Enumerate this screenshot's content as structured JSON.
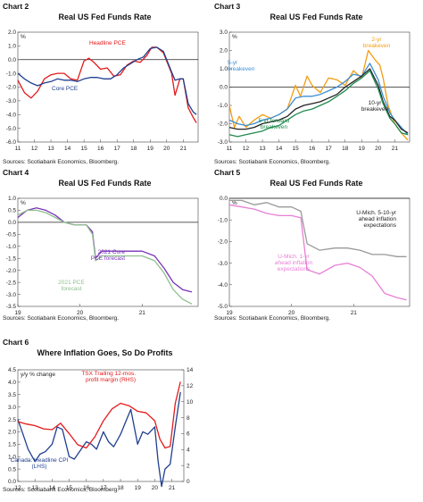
{
  "colors": {
    "red": "#e41a1c",
    "navy": "#1f3f8f",
    "orange": "#f39c12",
    "blue": "#3c8fd4",
    "black": "#222222",
    "green": "#1f8a4c",
    "purple": "#7a33b8",
    "lightgreen": "#8fbf8f",
    "gray": "#9a9a9a",
    "pink": "#e87fd6"
  },
  "charts": [
    {
      "id": "chart2",
      "chart_label": "Chart 2",
      "title": "Real US Fed Funds Rate",
      "unit": "%",
      "source": "Sources: Scotiabank Economics, Bloomberg.",
      "annotations": [
        "Headline PCE",
        "Core PCE"
      ]
    },
    {
      "id": "chart3",
      "chart_label": "Chart 3",
      "title": "Real US Fed Funds Rate",
      "unit": "%",
      "source": "Sources: Scotiabank Economics, Bloomberg.",
      "annotations": [
        "5-yr",
        "breakeven",
        "2-yr",
        "breakeven",
        "10-yr",
        "breakeven",
        "5-yr forward",
        "breakeven"
      ]
    },
    {
      "id": "chart4",
      "chart_label": "Chart 4",
      "title": "Real US Fed Funds Rate",
      "unit": "%",
      "source": "Sources: Scotiabank Economics, Bloomberg.",
      "annotations": [
        "2021 Core",
        "PCE forecast",
        "2021 PCE",
        "forecast"
      ]
    },
    {
      "id": "chart5",
      "chart_label": "Chart 5",
      "title": "Real US Fed Funds Rate",
      "unit": "%",
      "source": "Sources: Scotiabank Economics, Bloomberg.",
      "annotations": [
        "U-Mich. 5-10-yr",
        "ahead inflation",
        "expectations",
        "U-Mich. 1-yr",
        "ahead inflation",
        "expectations"
      ]
    },
    {
      "id": "chart6",
      "chart_label": "Chart 6",
      "title": "Where Inflation Goes, So Do Profits",
      "unit": "y/y % change",
      "source": "Sources: Scotiabank Economics, Bloomberg.",
      "annotations": [
        "TSX Trailing 12-mos.",
        "profit margin (RHS)",
        "Canada: Headline CPI",
        "(LHS)"
      ]
    }
  ],
  "chart_data": [
    {
      "type": "line",
      "title": "Real US Fed Funds Rate",
      "xlabel": "",
      "ylabel": "%",
      "xlim": [
        2011,
        2021.9
      ],
      "ylim": [
        -6.0,
        2.0
      ],
      "yticks": [
        2.0,
        1.0,
        0.0,
        -1.0,
        -2.0,
        -3.0,
        -4.0,
        -5.0,
        -6.0
      ],
      "ytick_labels": [
        "2.0",
        "1.0",
        "0.0",
        "-1.0",
        "-2.0",
        "-3.0",
        "-4.0",
        "-5.0",
        "-6.0"
      ],
      "xticks": [
        2011,
        2012,
        2013,
        2014,
        2015,
        2016,
        2017,
        2018,
        2019,
        2020,
        2021
      ],
      "xtick_labels": [
        "11",
        "12",
        "13",
        "14",
        "15",
        "16",
        "17",
        "18",
        "19",
        "20",
        "21"
      ],
      "zero_line": true,
      "series": [
        {
          "name": "Headline PCE",
          "color_key": "red",
          "x": [
            2011.0,
            2011.4,
            2011.8,
            2012.2,
            2012.6,
            2013.0,
            2013.4,
            2013.8,
            2014.2,
            2014.6,
            2015.0,
            2015.3,
            2015.6,
            2016.0,
            2016.4,
            2016.8,
            2017.2,
            2017.6,
            2018.0,
            2018.4,
            2018.8,
            2019.1,
            2019.4,
            2019.8,
            2020.1,
            2020.3,
            2020.5,
            2020.8,
            2021.0,
            2021.3,
            2021.6,
            2021.8
          ],
          "y": [
            -1.5,
            -2.4,
            -2.8,
            -2.3,
            -1.4,
            -1.1,
            -1.0,
            -1.0,
            -1.4,
            -1.5,
            -0.1,
            0.1,
            -0.2,
            -0.7,
            -0.6,
            -1.2,
            -1.1,
            -0.4,
            -0.1,
            -0.2,
            0.3,
            0.9,
            0.9,
            0.5,
            -0.4,
            -1.0,
            -2.6,
            -1.4,
            -1.4,
            -3.5,
            -4.2,
            -4.6
          ]
        },
        {
          "name": "Core PCE",
          "color_key": "navy",
          "x": [
            2011.0,
            2011.4,
            2011.8,
            2012.2,
            2012.6,
            2013.0,
            2013.4,
            2013.8,
            2014.2,
            2014.6,
            2015.0,
            2015.4,
            2015.8,
            2016.2,
            2016.6,
            2017.0,
            2017.4,
            2017.8,
            2018.2,
            2018.6,
            2019.0,
            2019.4,
            2019.8,
            2020.1,
            2020.3,
            2020.5,
            2020.8,
            2021.0,
            2021.3,
            2021.6,
            2021.8
          ],
          "y": [
            -1.0,
            -1.4,
            -1.7,
            -1.9,
            -1.7,
            -1.6,
            -1.4,
            -1.5,
            -1.5,
            -1.6,
            -1.4,
            -1.3,
            -1.3,
            -1.4,
            -1.4,
            -1.1,
            -0.6,
            -0.3,
            0.0,
            0.2,
            0.8,
            0.9,
            0.6,
            -0.3,
            -0.9,
            -1.5,
            -1.4,
            -1.4,
            -3.2,
            -3.8,
            -4.0
          ]
        }
      ]
    },
    {
      "type": "line",
      "title": "Real US Fed Funds Rate",
      "xlabel": "",
      "ylabel": "%",
      "xlim": [
        2011,
        2021.9
      ],
      "ylim": [
        -3.0,
        3.0
      ],
      "yticks": [
        3.0,
        2.0,
        1.0,
        0.0,
        -1.0,
        -2.0,
        -3.0
      ],
      "ytick_labels": [
        "3.0",
        "2.0",
        "1.0",
        "0.0",
        "-1.0",
        "-2.0",
        "-3.0"
      ],
      "xticks": [
        2011,
        2012,
        2013,
        2014,
        2015,
        2016,
        2017,
        2018,
        2019,
        2020,
        2021
      ],
      "xtick_labels": [
        "11",
        "12",
        "13",
        "14",
        "15",
        "16",
        "17",
        "18",
        "19",
        "20",
        "21"
      ],
      "zero_line": true,
      "series": [
        {
          "name": "2-yr breakeven",
          "color_key": "orange",
          "x": [
            2011.0,
            2011.3,
            2011.6,
            2012.0,
            2012.5,
            2013.0,
            2013.5,
            2014.0,
            2014.5,
            2015.0,
            2015.3,
            2015.7,
            2016.0,
            2016.5,
            2017.0,
            2017.5,
            2018.0,
            2018.5,
            2019.0,
            2019.4,
            2019.8,
            2020.1,
            2020.3,
            2020.6,
            2021.0,
            2021.4,
            2021.8
          ],
          "y": [
            -1.0,
            -2.2,
            -1.6,
            -2.2,
            -1.8,
            -1.5,
            -1.7,
            -1.5,
            -1.2,
            0.1,
            -0.5,
            0.6,
            0.1,
            -0.3,
            0.5,
            0.4,
            0.1,
            0.9,
            0.5,
            2.0,
            1.5,
            1.2,
            0.5,
            -1.0,
            -2.0,
            -2.5,
            -2.9
          ]
        },
        {
          "name": "5-yr breakeven",
          "color_key": "blue",
          "x": [
            2011.0,
            2011.5,
            2012.0,
            2012.5,
            2013.0,
            2013.5,
            2014.0,
            2014.5,
            2015.0,
            2015.5,
            2016.0,
            2016.5,
            2017.0,
            2017.5,
            2018.0,
            2018.5,
            2019.0,
            2019.5,
            2020.0,
            2020.3,
            2020.7,
            2021.0,
            2021.4,
            2021.8
          ],
          "y": [
            -1.8,
            -2.0,
            -2.1,
            -2.0,
            -1.8,
            -1.7,
            -1.5,
            -1.2,
            -0.6,
            -0.5,
            -0.5,
            -0.4,
            -0.2,
            0.0,
            0.3,
            0.7,
            0.6,
            1.3,
            0.4,
            -0.5,
            -1.4,
            -1.8,
            -2.2,
            -2.6
          ]
        },
        {
          "name": "10-yr breakeven",
          "color_key": "black",
          "x": [
            2011.0,
            2011.5,
            2012.0,
            2012.5,
            2013.0,
            2013.5,
            2014.0,
            2014.5,
            2015.0,
            2015.5,
            2016.0,
            2016.5,
            2017.0,
            2017.5,
            2018.0,
            2018.5,
            2019.0,
            2019.5,
            2020.0,
            2020.3,
            2020.7,
            2021.0,
            2021.4,
            2021.8
          ],
          "y": [
            -2.2,
            -2.3,
            -2.3,
            -2.2,
            -2.0,
            -1.9,
            -1.8,
            -1.6,
            -1.2,
            -1.0,
            -0.9,
            -0.8,
            -0.6,
            -0.4,
            0.0,
            0.3,
            0.6,
            1.0,
            0.1,
            -0.8,
            -1.6,
            -1.8,
            -2.3,
            -2.5
          ]
        },
        {
          "name": "5-yr forward breakeven",
          "color_key": "green",
          "x": [
            2011.0,
            2011.5,
            2012.0,
            2012.5,
            2013.0,
            2013.5,
            2014.0,
            2014.5,
            2015.0,
            2015.5,
            2016.0,
            2016.5,
            2017.0,
            2017.5,
            2018.0,
            2018.5,
            2019.0,
            2019.5,
            2020.0,
            2020.3,
            2020.7,
            2021.0,
            2021.4,
            2021.8
          ],
          "y": [
            -2.6,
            -2.7,
            -2.6,
            -2.5,
            -2.4,
            -2.2,
            -2.1,
            -1.8,
            -1.5,
            -1.3,
            -1.2,
            -1.0,
            -0.8,
            -0.5,
            -0.2,
            0.2,
            0.5,
            0.9,
            -0.1,
            -0.9,
            -1.7,
            -2.0,
            -2.5,
            -2.6
          ]
        }
      ]
    },
    {
      "type": "line",
      "title": "Real US Fed Funds Rate",
      "xlabel": "",
      "ylabel": "%",
      "xlim": [
        2019,
        2021.9
      ],
      "ylim": [
        -3.5,
        1.0
      ],
      "yticks": [
        1.0,
        0.5,
        0.0,
        -0.5,
        -1.0,
        -1.5,
        -2.0,
        -2.5,
        -3.0,
        -3.5
      ],
      "ytick_labels": [
        "1.0",
        "0.5",
        "0.0",
        "-0.5",
        "-1.0",
        "-1.5",
        "-2.0",
        "-2.5",
        "-3.0",
        "-3.5"
      ],
      "xticks": [
        2019,
        2020,
        2021
      ],
      "xtick_labels": [
        "19",
        "20",
        "21"
      ],
      "zero_line": true,
      "series": [
        {
          "name": "2021 Core PCE forecast",
          "color_key": "purple",
          "x": [
            2019.0,
            2019.15,
            2019.3,
            2019.45,
            2019.6,
            2019.75,
            2019.9,
            2020.1,
            2020.2,
            2020.25,
            2020.35,
            2020.6,
            2020.9,
            2021.0,
            2021.2,
            2021.35,
            2021.5,
            2021.65,
            2021.8
          ],
          "y": [
            0.2,
            0.5,
            0.6,
            0.5,
            0.3,
            0.0,
            -0.1,
            -0.1,
            -0.4,
            -1.5,
            -1.2,
            -1.2,
            -1.2,
            -1.2,
            -1.4,
            -1.9,
            -2.5,
            -2.8,
            -2.9
          ]
        },
        {
          "name": "2021 PCE forecast",
          "color_key": "lightgreen",
          "x": [
            2019.0,
            2019.15,
            2019.3,
            2019.45,
            2019.6,
            2019.75,
            2019.9,
            2020.1,
            2020.2,
            2020.25,
            2020.35,
            2020.6,
            2020.9,
            2021.0,
            2021.2,
            2021.35,
            2021.5,
            2021.65,
            2021.8
          ],
          "y": [
            0.3,
            0.5,
            0.5,
            0.4,
            0.2,
            0.0,
            -0.1,
            -0.1,
            -0.5,
            -1.6,
            -1.4,
            -1.4,
            -1.4,
            -1.4,
            -1.6,
            -2.1,
            -2.8,
            -3.2,
            -3.4
          ]
        }
      ]
    },
    {
      "type": "line",
      "title": "Real US Fed Funds Rate",
      "xlabel": "",
      "ylabel": "%",
      "xlim": [
        2019,
        2021.9
      ],
      "ylim": [
        -5.0,
        0.0
      ],
      "yticks": [
        0.0,
        -1.0,
        -2.0,
        -3.0,
        -4.0,
        -5.0
      ],
      "ytick_labels": [
        "0.0",
        "-1.0",
        "-2.0",
        "-3.0",
        "-4.0",
        "-5.0"
      ],
      "xticks": [
        2019,
        2020,
        2021
      ],
      "xtick_labels": [
        "19",
        "20",
        "21"
      ],
      "zero_line": true,
      "series": [
        {
          "name": "U-Mich. 5-10-yr ahead inflation expectations",
          "color_key": "gray",
          "x": [
            2019.0,
            2019.2,
            2019.4,
            2019.6,
            2019.8,
            2020.0,
            2020.15,
            2020.25,
            2020.45,
            2020.7,
            2020.9,
            2021.1,
            2021.3,
            2021.5,
            2021.7,
            2021.85
          ],
          "y": [
            -0.1,
            -0.1,
            -0.3,
            -0.2,
            -0.4,
            -0.4,
            -0.6,
            -2.1,
            -2.4,
            -2.3,
            -2.3,
            -2.4,
            -2.6,
            -2.6,
            -2.7,
            -2.7
          ]
        },
        {
          "name": "U-Mich. 1-yr ahead inflation expectations",
          "color_key": "pink",
          "x": [
            2019.0,
            2019.2,
            2019.4,
            2019.6,
            2019.8,
            2020.0,
            2020.15,
            2020.25,
            2020.45,
            2020.7,
            2020.9,
            2021.1,
            2021.3,
            2021.5,
            2021.7,
            2021.85
          ],
          "y": [
            -0.3,
            -0.4,
            -0.5,
            -0.7,
            -0.8,
            -0.8,
            -0.9,
            -3.3,
            -3.5,
            -3.1,
            -3.0,
            -3.2,
            -3.6,
            -4.4,
            -4.6,
            -4.7
          ]
        }
      ]
    },
    {
      "type": "line",
      "title": "Where Inflation Goes, So Do Profits",
      "xlabel": "",
      "ylabel": "y/y % change",
      "xlim": [
        2012,
        2021.7
      ],
      "ylim": [
        0.0,
        4.5
      ],
      "y2lim": [
        0,
        14
      ],
      "yticks": [
        4.5,
        4.0,
        3.5,
        3.0,
        2.5,
        2.0,
        1.5,
        1.0,
        0.5,
        0.0
      ],
      "ytick_labels": [
        "4.5",
        "4.0",
        "3.5",
        "3.0",
        "2.5",
        "2.0",
        "1.5",
        "1.0",
        "0.5",
        "0.0"
      ],
      "y2ticks": [
        14,
        12,
        10,
        8,
        6,
        4,
        2,
        0
      ],
      "y2tick_labels": [
        "14",
        "12",
        "10",
        "8",
        "6",
        "4",
        "2",
        "0"
      ],
      "xticks": [
        2012,
        2013,
        2014,
        2015,
        2016,
        2017,
        2018,
        2019,
        2020,
        2021
      ],
      "xtick_labels": [
        "12",
        "13",
        "14",
        "15",
        "16",
        "17",
        "18",
        "19",
        "20",
        "21"
      ],
      "series": [
        {
          "name": "Canada: Headline CPI (LHS)",
          "color_key": "navy",
          "axis": "left",
          "x": [
            2012.0,
            2012.3,
            2012.6,
            2013.0,
            2013.3,
            2013.6,
            2014.0,
            2014.3,
            2014.6,
            2015.0,
            2015.3,
            2015.6,
            2016.0,
            2016.3,
            2016.6,
            2017.0,
            2017.3,
            2017.6,
            2018.0,
            2018.3,
            2018.6,
            2019.0,
            2019.3,
            2019.6,
            2020.0,
            2020.2,
            2020.4,
            2020.6,
            2020.9,
            2021.2,
            2021.5
          ],
          "y": [
            2.5,
            1.9,
            1.3,
            0.8,
            1.1,
            1.2,
            1.5,
            2.2,
            2.1,
            1.0,
            0.9,
            1.2,
            1.6,
            1.5,
            1.3,
            2.0,
            1.6,
            1.4,
            1.9,
            2.4,
            2.9,
            1.5,
            2.0,
            1.9,
            2.2,
            0.8,
            -0.2,
            0.5,
            0.7,
            2.2,
            3.6
          ]
        },
        {
          "name": "TSX Trailing 12-mos. profit margin (RHS)",
          "color_key": "red",
          "axis": "right",
          "x": [
            2012.0,
            2012.5,
            2013.0,
            2013.5,
            2014.0,
            2014.5,
            2015.0,
            2015.5,
            2016.0,
            2016.5,
            2017.0,
            2017.5,
            2018.0,
            2018.5,
            2019.0,
            2019.5,
            2020.0,
            2020.3,
            2020.6,
            2020.9,
            2021.2,
            2021.5
          ],
          "y": [
            7.5,
            7.2,
            7.0,
            6.6,
            6.5,
            7.3,
            6.0,
            4.6,
            4.2,
            5.6,
            7.6,
            9.1,
            9.8,
            9.5,
            8.8,
            8.6,
            7.6,
            5.3,
            4.2,
            4.4,
            9.8,
            12.5
          ]
        }
      ]
    }
  ]
}
